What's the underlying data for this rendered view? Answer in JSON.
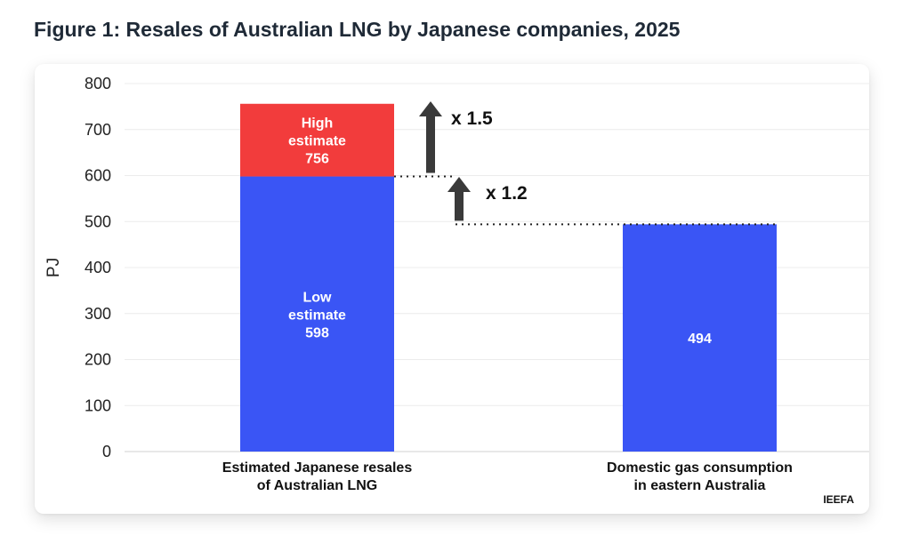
{
  "header": {
    "title": "Figure 1: Resales of Australian LNG by Japanese companies, 2025"
  },
  "chart_data": {
    "type": "bar",
    "stacked": true,
    "ylabel": "PJ",
    "ylim": [
      0,
      800
    ],
    "yticks": [
      0,
      100,
      200,
      300,
      400,
      500,
      600,
      700,
      800
    ],
    "grid": true,
    "categories": [
      [
        "Estimated Japanese resales",
        "of Australian LNG"
      ],
      [
        "Domestic gas consumption",
        "in eastern Australia"
      ]
    ],
    "bars": [
      {
        "segments": [
          {
            "value": 598,
            "label_lines": [
              "Low",
              "estimate",
              "598"
            ],
            "color": "#3a55f5"
          },
          {
            "from": 598,
            "to": 756,
            "label_lines": [
              "High",
              "estimate",
              "756"
            ],
            "color": "#f23c3c"
          }
        ]
      },
      {
        "segments": [
          {
            "value": 494,
            "label_lines": [
              "494"
            ],
            "color": "#3a55f5"
          }
        ]
      }
    ],
    "annotations": [
      {
        "label": "x 1.5",
        "from": 598,
        "to": 756
      },
      {
        "label": "x 1.2",
        "from": 494,
        "to": 598
      }
    ],
    "source": "IEEFA"
  }
}
